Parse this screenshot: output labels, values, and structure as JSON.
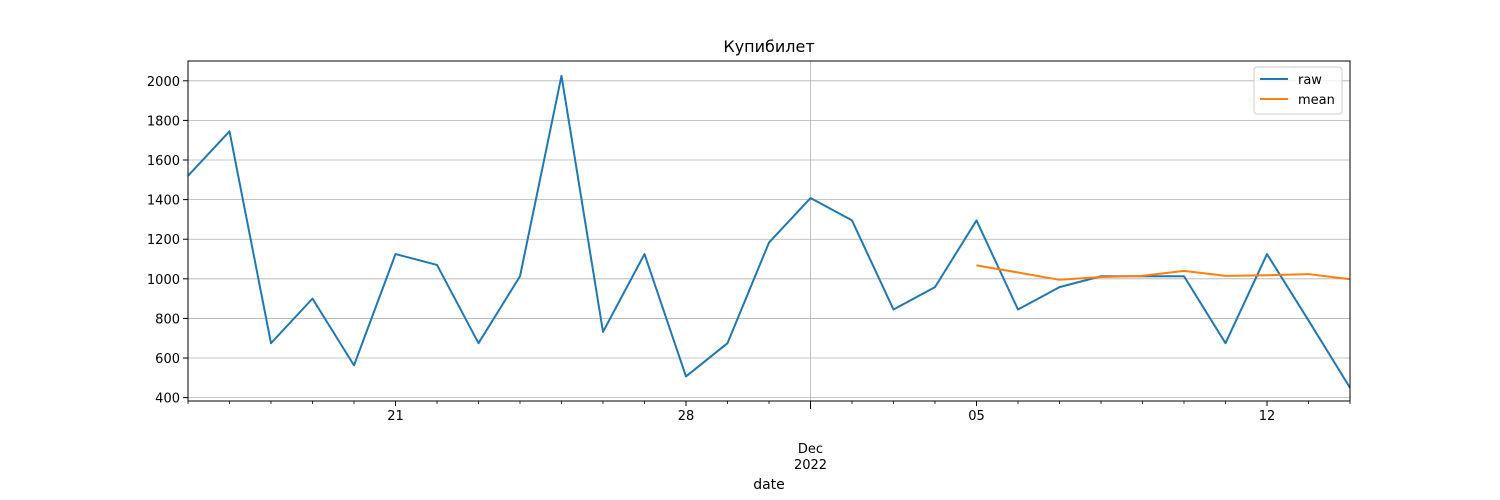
{
  "chart_data": {
    "type": "line",
    "title": "Купибилет",
    "xlabel": "date",
    "ylabel": "",
    "ylim": [
      383,
      2100
    ],
    "xlim": [
      "2022-11-16",
      "2022-12-14"
    ],
    "grid": true,
    "legend_position": "top-right",
    "x_tick_labels": [
      {
        "date": "2022-11-21",
        "label": "21"
      },
      {
        "date": "2022-11-28",
        "label": "28"
      },
      {
        "date": "2022-12-05",
        "label": "05"
      },
      {
        "date": "2022-12-12",
        "label": "12"
      }
    ],
    "x_major_date": "2022-12-01",
    "x_major_label": [
      "Dec",
      "2022"
    ],
    "y_ticks": [
      400,
      600,
      800,
      1000,
      1200,
      1400,
      1600,
      1800,
      2000
    ],
    "series": [
      {
        "name": "raw",
        "color": "#1f77b4",
        "points": [
          [
            "2022-11-16",
            1520
          ],
          [
            "2022-11-17",
            1745
          ],
          [
            "2022-11-18",
            675
          ],
          [
            "2022-11-19",
            900
          ],
          [
            "2022-11-20",
            563
          ],
          [
            "2022-11-21",
            1125
          ],
          [
            "2022-11-22",
            1070
          ],
          [
            "2022-11-23",
            675
          ],
          [
            "2022-11-24",
            1013
          ],
          [
            "2022-11-25",
            2025
          ],
          [
            "2022-11-26",
            732
          ],
          [
            "2022-11-27",
            1125
          ],
          [
            "2022-11-28",
            507
          ],
          [
            "2022-11-29",
            675
          ],
          [
            "2022-11-30",
            1183
          ],
          [
            "2022-12-01",
            1408
          ],
          [
            "2022-12-02",
            1295
          ],
          [
            "2022-12-03",
            845
          ],
          [
            "2022-12-04",
            958
          ],
          [
            "2022-12-05",
            1295
          ],
          [
            "2022-12-06",
            845
          ],
          [
            "2022-12-07",
            958
          ],
          [
            "2022-12-08",
            1013
          ],
          [
            "2022-12-09",
            1013
          ],
          [
            "2022-12-10",
            1013
          ],
          [
            "2022-12-11",
            675
          ],
          [
            "2022-12-12",
            1125
          ],
          [
            "2022-12-13",
            790
          ],
          [
            "2022-12-14",
            450
          ]
        ]
      },
      {
        "name": "mean",
        "color": "#ff7f0e",
        "points": [
          [
            "2022-12-05",
            1068
          ],
          [
            "2022-12-06",
            1032
          ],
          [
            "2022-12-07",
            995
          ],
          [
            "2022-12-08",
            1009
          ],
          [
            "2022-12-09",
            1015
          ],
          [
            "2022-12-10",
            1040
          ],
          [
            "2022-12-11",
            1015
          ],
          [
            "2022-12-12",
            1018
          ],
          [
            "2022-12-13",
            1024
          ],
          [
            "2022-12-14",
            998
          ]
        ]
      }
    ]
  }
}
